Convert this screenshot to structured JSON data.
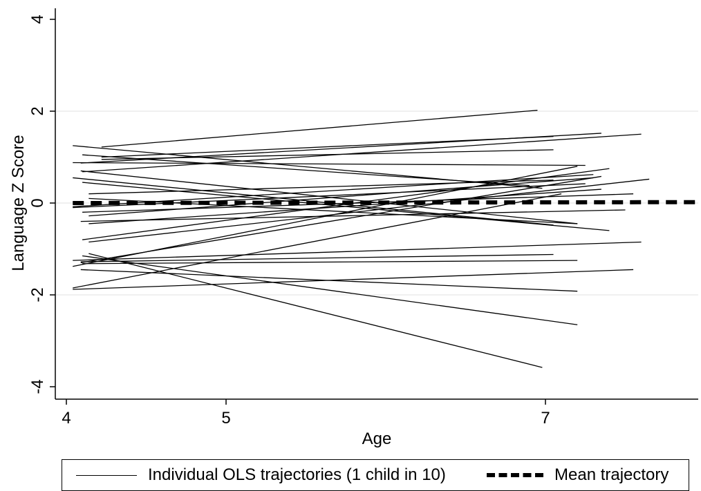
{
  "chart_data": {
    "type": "line",
    "xlabel": "Age",
    "ylabel": "Language Z Score",
    "xlim": [
      4,
      8
    ],
    "ylim": [
      -4,
      4
    ],
    "x_ticks": [
      4,
      5,
      7
    ],
    "y_ticks": [
      -4,
      -2,
      0,
      2,
      4
    ],
    "grid": {
      "horizontal": true,
      "vertical": false
    },
    "legend_position": "bottom",
    "series": [
      {
        "name": "Individual OLS trajectories (1 child in 10)",
        "style": "solid",
        "color": "#000000",
        "lines": [
          [
            [
              4.04,
              1.25
            ],
            [
              6.98,
              0.32
            ]
          ],
          [
            [
              4.22,
              1.22
            ],
            [
              6.95,
              2.02
            ]
          ],
          [
            [
              4.09,
              0.87
            ],
            [
              7.35,
              1.52
            ]
          ],
          [
            [
              4.22,
              1.0
            ],
            [
              7.05,
              1.45
            ]
          ],
          [
            [
              4.22,
              0.95
            ],
            [
              7.05,
              1.16
            ]
          ],
          [
            [
              4.1,
              0.68
            ],
            [
              7.6,
              1.5
            ]
          ],
          [
            [
              4.04,
              0.88
            ],
            [
              7.25,
              0.82
            ]
          ],
          [
            [
              4.1,
              1.05
            ],
            [
              6.9,
              0.38
            ]
          ],
          [
            [
              4.09,
              0.7
            ],
            [
              7.2,
              -0.45
            ]
          ],
          [
            [
              4.04,
              0.55
            ],
            [
              7.05,
              -0.48
            ]
          ],
          [
            [
              4.14,
              0.2
            ],
            [
              7.05,
              0.5
            ]
          ],
          [
            [
              4.1,
              0.45
            ],
            [
              7.4,
              -0.6
            ]
          ],
          [
            [
              4.04,
              -0.08
            ],
            [
              7.3,
              0.62
            ]
          ],
          [
            [
              4.04,
              -0.1
            ],
            [
              7.25,
              0.42
            ]
          ],
          [
            [
              4.14,
              -0.45
            ],
            [
              7.35,
              0.3
            ]
          ],
          [
            [
              4.1,
              -0.2
            ],
            [
              7.55,
              0.2
            ]
          ],
          [
            [
              4.14,
              -0.28
            ],
            [
              7.3,
              0.55
            ]
          ],
          [
            [
              4.09,
              -0.4
            ],
            [
              7.5,
              -0.15
            ]
          ],
          [
            [
              4.14,
              0.1
            ],
            [
              7.2,
              -0.45
            ]
          ],
          [
            [
              4.1,
              -0.8
            ],
            [
              7.4,
              0.75
            ]
          ],
          [
            [
              4.14,
              -0.85
            ],
            [
              7.65,
              0.52
            ]
          ],
          [
            [
              4.04,
              -1.38
            ],
            [
              7.2,
              0.8
            ]
          ],
          [
            [
              4.09,
              -1.3
            ],
            [
              7.35,
              0.58
            ]
          ],
          [
            [
              4.04,
              -1.25
            ],
            [
              7.6,
              -0.85
            ]
          ],
          [
            [
              4.09,
              -1.28
            ],
            [
              7.05,
              -1.12
            ]
          ],
          [
            [
              4.1,
              -1.32
            ],
            [
              7.2,
              -1.25
            ]
          ],
          [
            [
              4.04,
              -1.85
            ],
            [
              7.1,
              0.2
            ]
          ],
          [
            [
              4.04,
              -1.88
            ],
            [
              7.55,
              -1.45
            ]
          ],
          [
            [
              4.09,
              -1.45
            ],
            [
              7.2,
              -1.92
            ]
          ],
          [
            [
              4.1,
              -1.15
            ],
            [
              7.2,
              -2.65
            ]
          ],
          [
            [
              4.14,
              -1.1
            ],
            [
              6.98,
              -3.58
            ]
          ]
        ]
      },
      {
        "name": "Mean trajectory",
        "style": "dashed",
        "color": "#000000",
        "x": [
          4.04,
          8
        ],
        "y": [
          0.0,
          0.02
        ]
      }
    ]
  },
  "legend": {
    "solid_label": "Individual OLS trajectories (1 child in 10)",
    "dashed_label": "Mean trajectory"
  }
}
